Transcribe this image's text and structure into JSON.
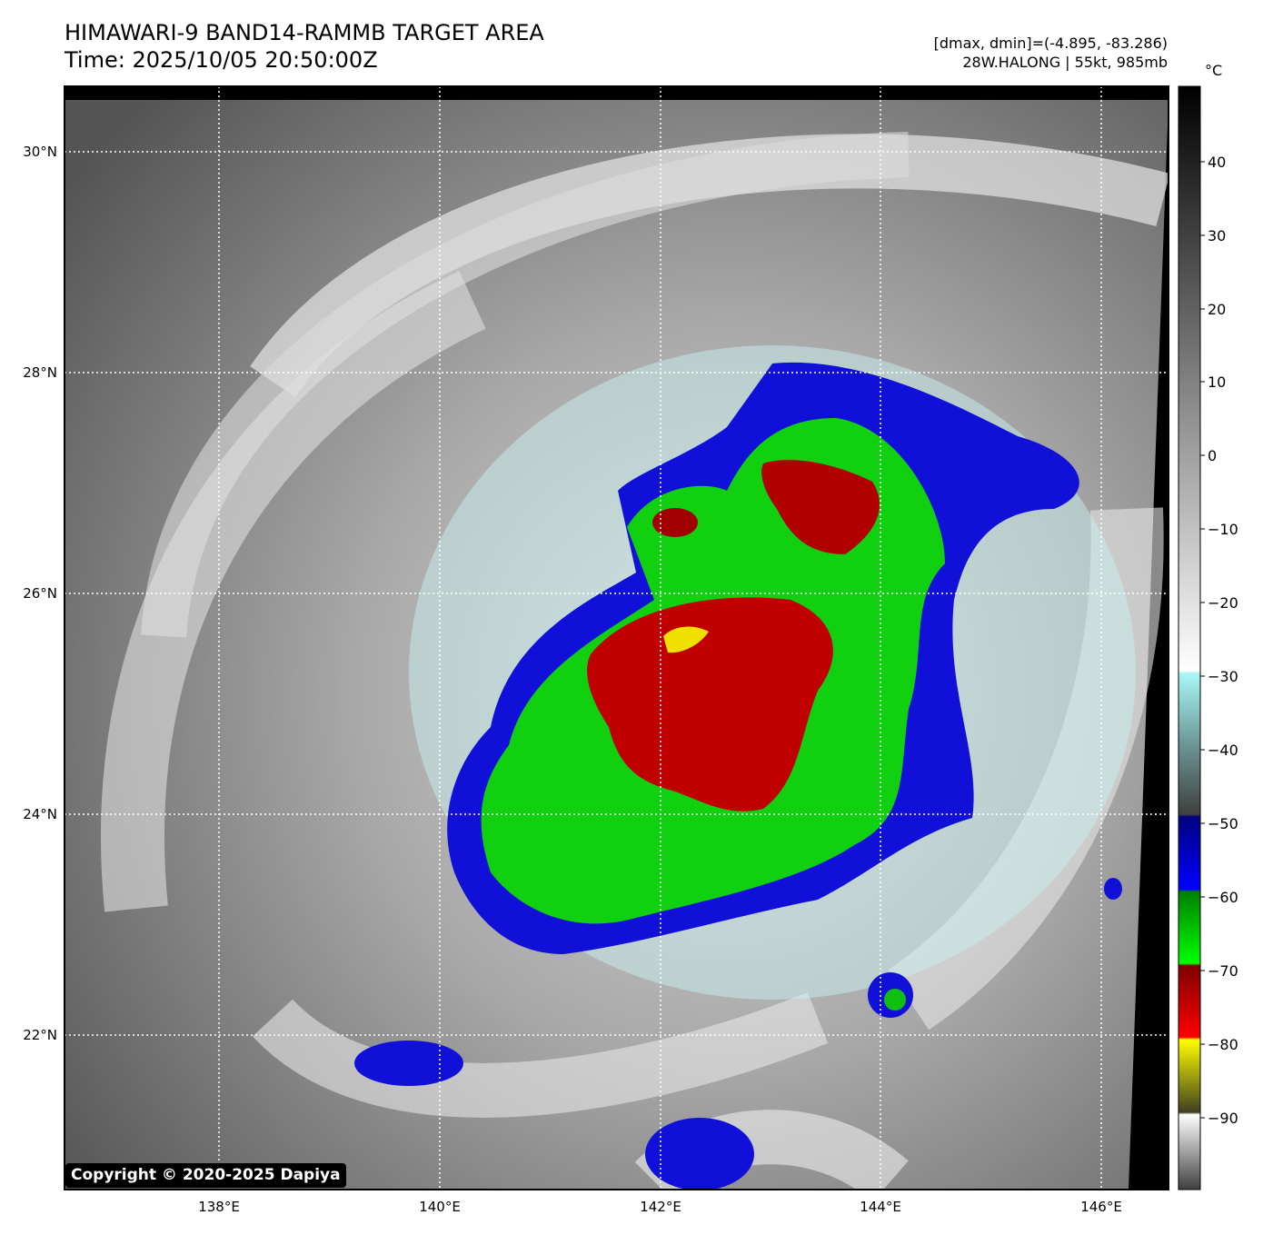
{
  "header": {
    "title_line1": "HIMAWARI-9 BAND14-RAMMB TARGET AREA",
    "title_line2": "Time: 2025/10/05 20:50:00Z",
    "range_text": "[dmax, dmin]=(-4.895, -83.286)",
    "storm_text": "28W.HALONG | 55kt, 985mb"
  },
  "map": {
    "lat_labels": [
      "30°N",
      "28°N",
      "26°N",
      "24°N",
      "22°N"
    ],
    "lon_labels": [
      "138°E",
      "140°E",
      "142°E",
      "144°E",
      "146°E"
    ],
    "gridlines": "dotted-white",
    "copyright": "Copyright © 2020-2025 Dapiya"
  },
  "colorbar": {
    "unit": "°C",
    "ticks": [
      "40",
      "30",
      "20",
      "10",
      "0",
      "−10",
      "−20",
      "−30",
      "−40",
      "−50",
      "−60",
      "−70",
      "−80",
      "−90"
    ],
    "colors": {
      "cloud_cold_cyan": "#a8f0f0",
      "blue": "#0000c8",
      "green": "#00c000",
      "red": "#c00000",
      "yellow": "#f0f000",
      "warm_gray": "#505050"
    }
  }
}
